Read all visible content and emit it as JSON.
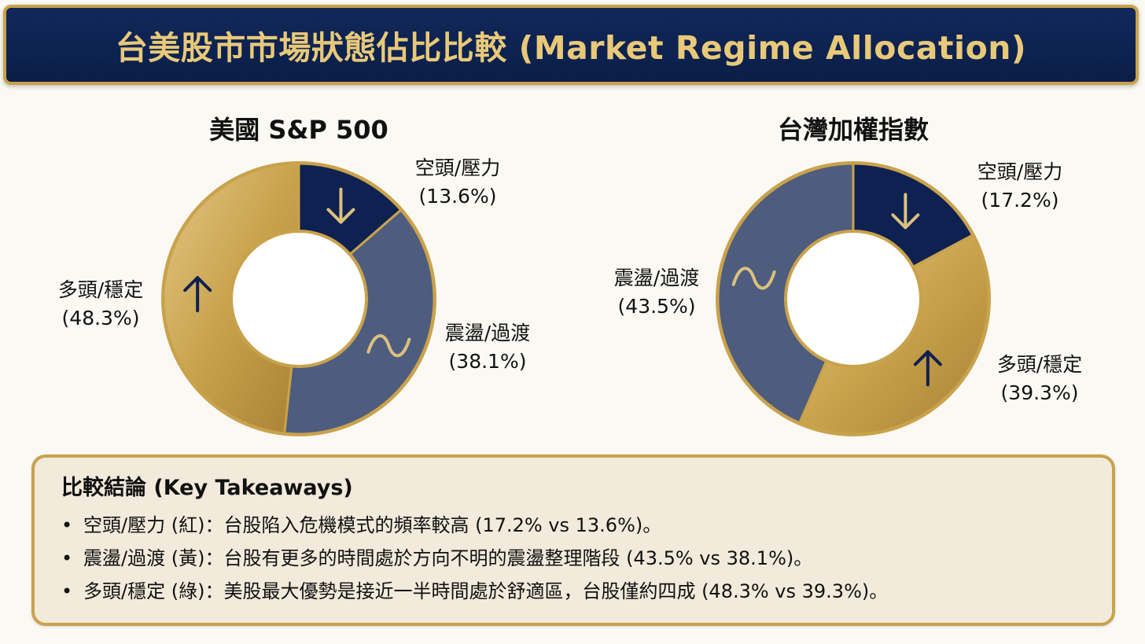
{
  "title": "台美股市市場狀態佔比比較 (Market Regime Allocation)",
  "colors": {
    "bear": "#0e2150",
    "range": "#4e5d7e",
    "bull": "#c9a24c",
    "bull_light": "#dcc07e",
    "ring_border": "#c9a24c",
    "banner_bg": "#0e2150",
    "banner_text": "#e8c97a"
  },
  "chart_data": [
    {
      "type": "pie",
      "title": "美國 S&P 500",
      "slices": [
        {
          "label": "空頭/壓力",
          "value": 13.6,
          "display": "(13.6%)",
          "color": "#0e2150",
          "icon": "down-arrow-icon"
        },
        {
          "label": "震盪/過渡",
          "value": 38.1,
          "display": "(38.1%)",
          "color": "#4e5d7e",
          "icon": "wave-icon"
        },
        {
          "label": "多頭/穩定",
          "value": 48.3,
          "display": "(48.3%)",
          "color": "#c9a24c",
          "icon": "up-arrow-icon"
        }
      ]
    },
    {
      "type": "pie",
      "title": "台灣加權指數",
      "slices": [
        {
          "label": "空頭/壓力",
          "value": 17.2,
          "display": "(17.2%)",
          "color": "#0e2150",
          "icon": "down-arrow-icon"
        },
        {
          "label": "多頭/穩定",
          "value": 39.3,
          "display": "(39.3%)",
          "color": "#c9a24c",
          "icon": "up-arrow-icon"
        },
        {
          "label": "震盪/過渡",
          "value": 43.5,
          "display": "(43.5%)",
          "color": "#4e5d7e",
          "icon": "wave-icon"
        }
      ]
    }
  ],
  "takeaways": {
    "heading": "比較結論 (Key Takeaways)",
    "items": [
      "空頭/壓力 (紅)：台股陷入危機模式的頻率較高 (17.2% vs 13.6%)。",
      "震盪/過渡 (黃)：台股有更多的時間處於方向不明的震盪整理階段 (43.5% vs 38.1%)。",
      "多頭/穩定 (綠)：美股最大優勢是接近一半時間處於舒適區，台股僅約四成 (48.3% vs 39.3%)。"
    ]
  }
}
